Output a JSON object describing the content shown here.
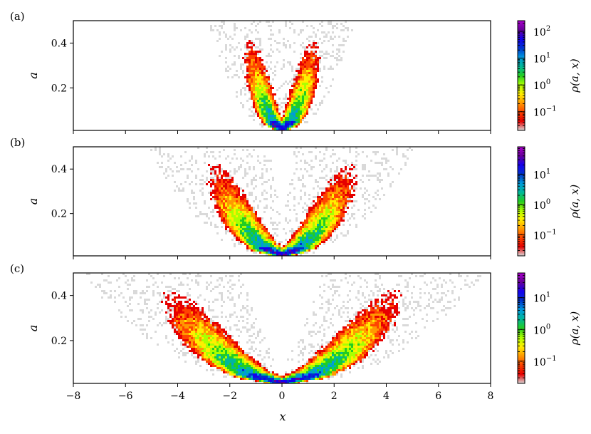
{
  "figure": {
    "xlabel": "x",
    "ylabel": "a",
    "colorbar_label": "ρ(a, x)",
    "x_ticks": [
      "−8",
      "−6",
      "−4",
      "−2",
      "0",
      "2",
      "4",
      "6",
      "8"
    ],
    "y_ticks": [
      "0.2",
      "0.4"
    ]
  },
  "chart_data": [
    {
      "type": "heatmap",
      "panel_label": "(a)",
      "xlim": [
        -8,
        8
      ],
      "ylim": [
        0.01,
        0.5
      ],
      "ridge_curvature": 0.25,
      "ridge_width": 0.28,
      "colorbar": {
        "scale": "log",
        "ticks": [
          "10^{-1}",
          "10^{0}",
          "10^{1}",
          "10^{2}"
        ],
        "range": [
          0.02,
          250
        ]
      }
    },
    {
      "type": "heatmap",
      "panel_label": "(b)",
      "xlim": [
        -8,
        8
      ],
      "ylim": [
        0.01,
        0.5
      ],
      "ridge_curvature": 0.06,
      "ridge_width": 0.45,
      "colorbar": {
        "scale": "log",
        "ticks": [
          "10^{-1}",
          "10^{0}",
          "10^{1}"
        ],
        "range": [
          0.02,
          80
        ]
      }
    },
    {
      "type": "heatmap",
      "panel_label": "(c)",
      "xlim": [
        -8,
        8
      ],
      "ylim": [
        0.01,
        0.5
      ],
      "ridge_curvature": 0.022,
      "ridge_width": 0.6,
      "colorbar": {
        "scale": "log",
        "ticks": [
          "10^{-1}",
          "10^{0}",
          "10^{1}"
        ],
        "range": [
          0.02,
          60
        ]
      }
    }
  ],
  "colormap": [
    "#d9d9d9",
    "#e60000",
    "#ff4400",
    "#ff9900",
    "#ffee00",
    "#aaff00",
    "#22cc22",
    "#00b89a",
    "#0099dd",
    "#0033cc",
    "#1500ee",
    "#660099",
    "#aa00cc"
  ]
}
